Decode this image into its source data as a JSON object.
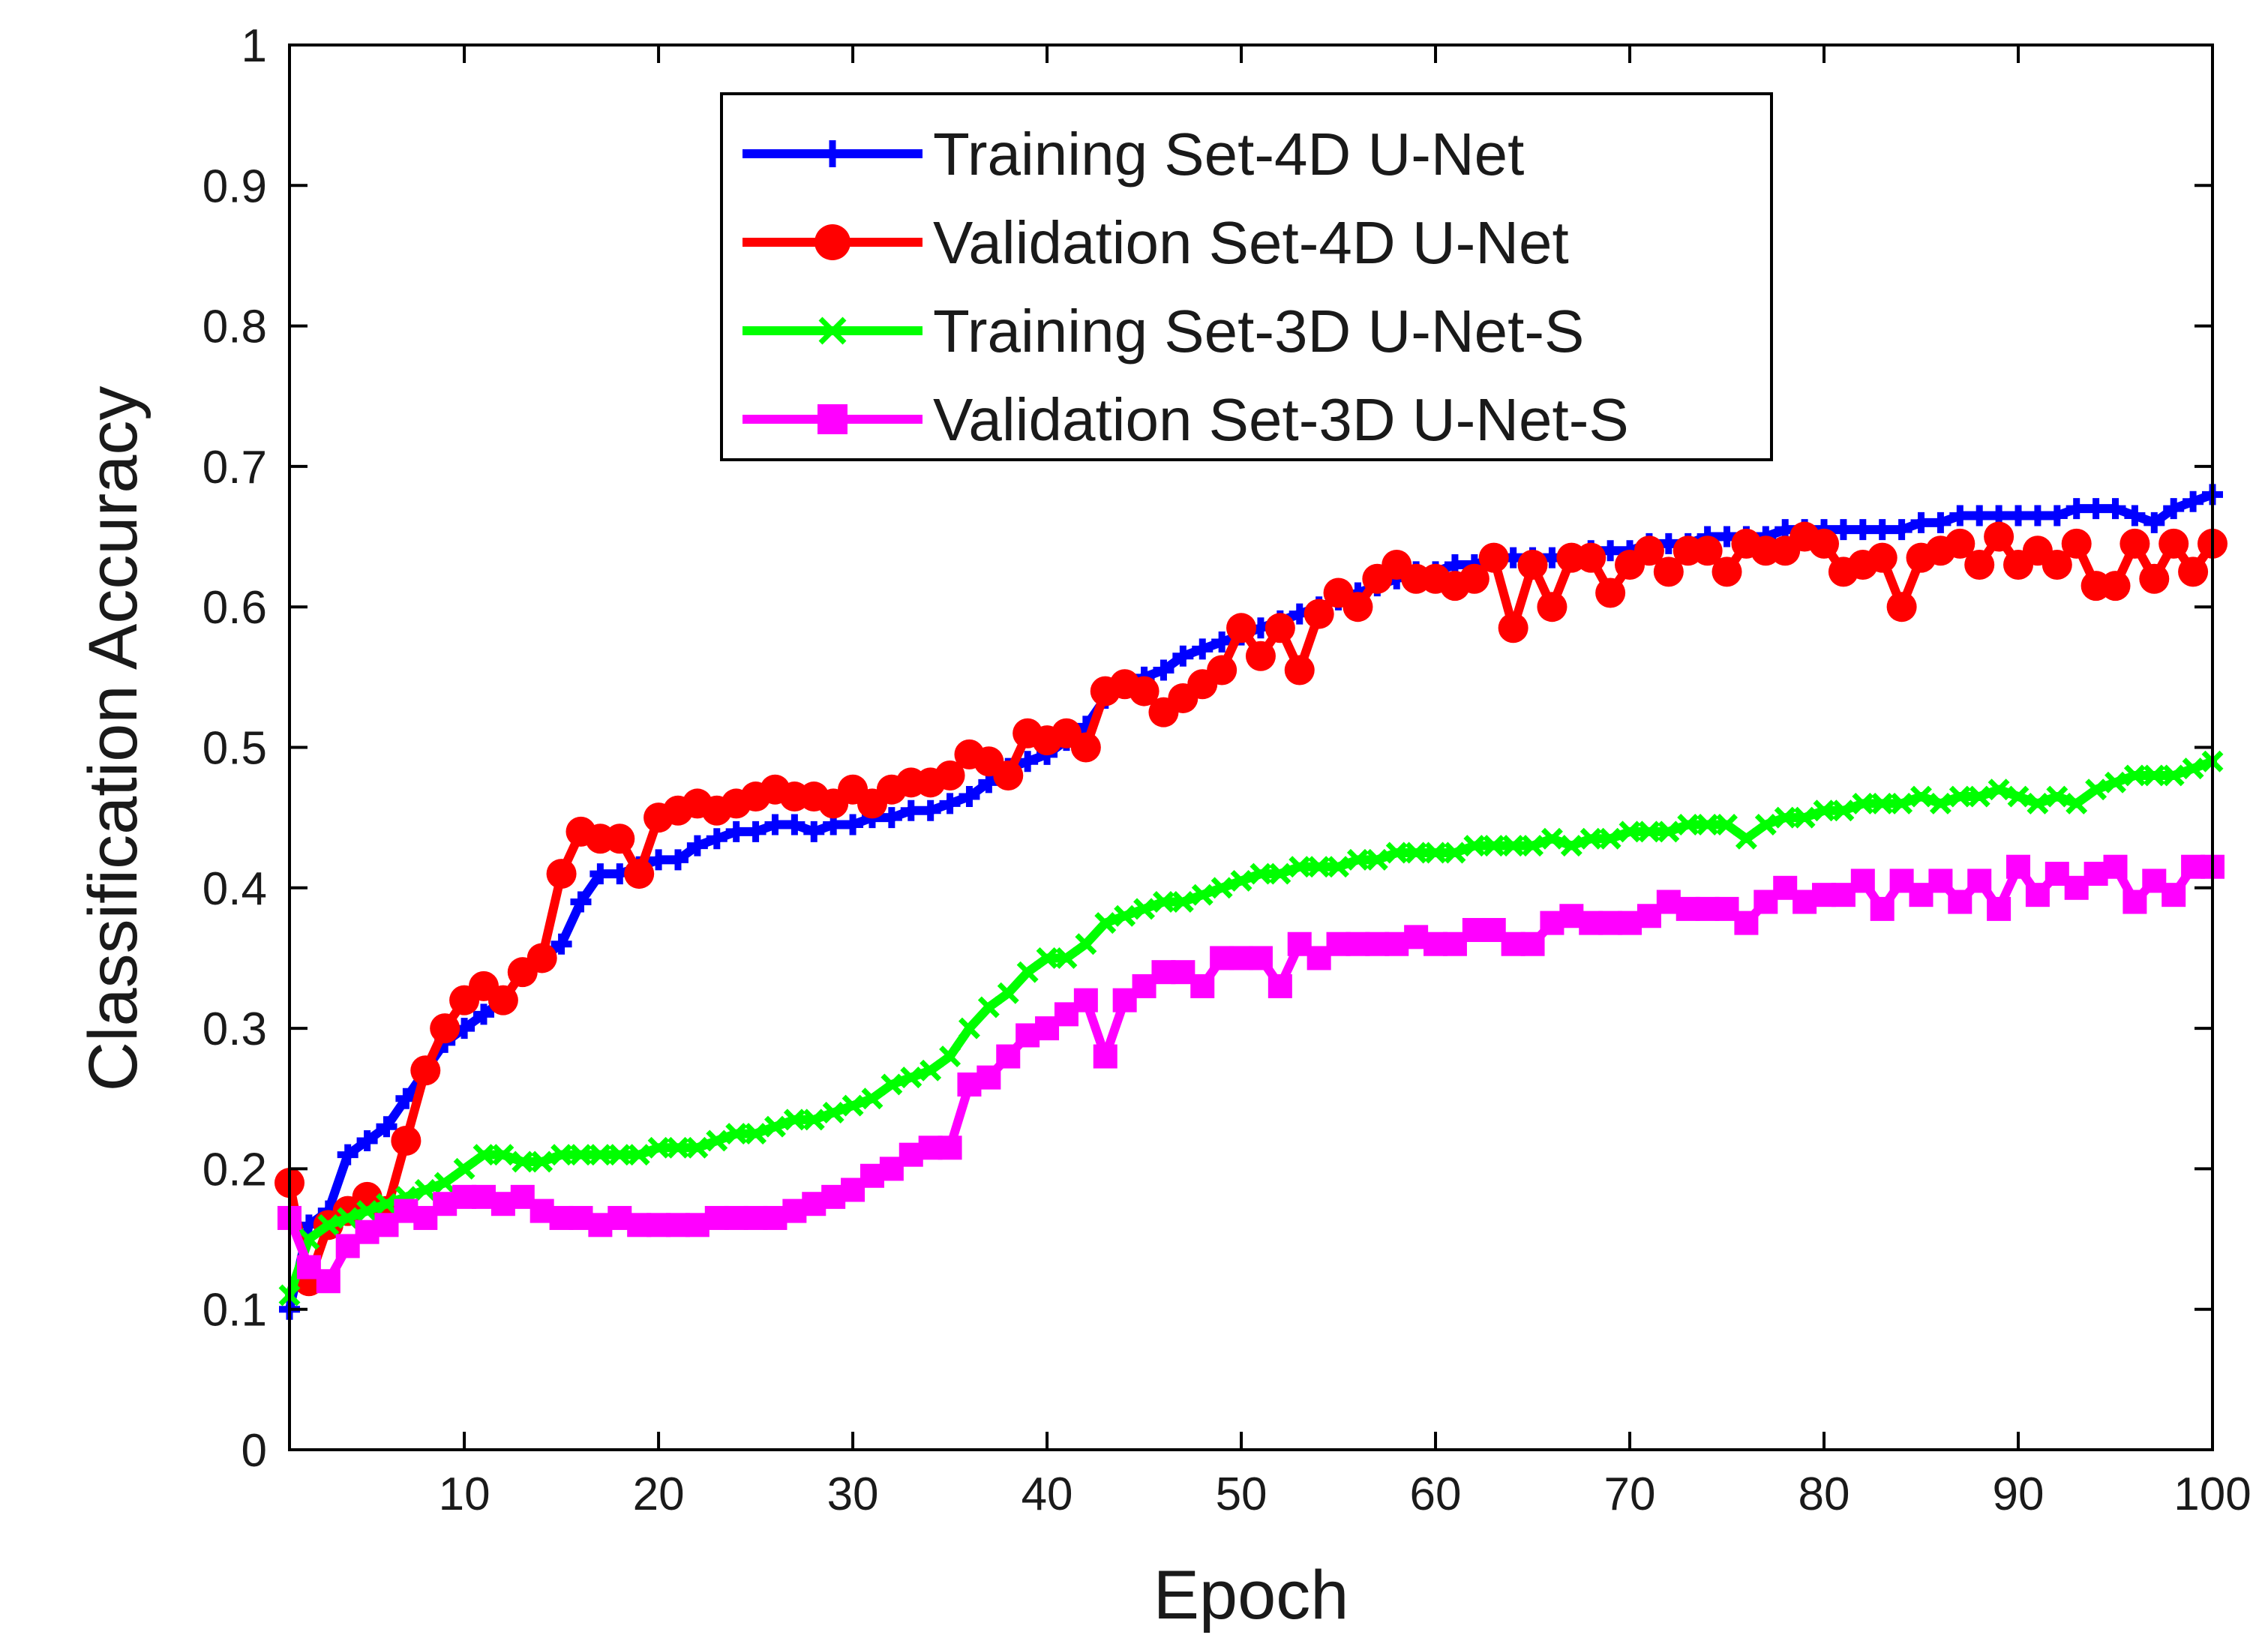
{
  "chart_data": {
    "type": "line",
    "title": "",
    "xlabel": "Epoch",
    "ylabel": "Classification Accuracy",
    "xlim": [
      1,
      100
    ],
    "ylim": [
      0,
      1
    ],
    "xticks": [
      10,
      20,
      30,
      40,
      50,
      60,
      70,
      80,
      90,
      100
    ],
    "yticks": [
      0,
      0.1,
      0.2,
      0.3,
      0.4,
      0.5,
      0.6,
      0.7,
      0.8,
      0.9,
      1
    ],
    "ytick_labels": [
      "0",
      "0.1",
      "0.2",
      "0.3",
      "0.4",
      "0.5",
      "0.6",
      "0.7",
      "0.8",
      "0.9",
      "1"
    ],
    "grid": false,
    "legend_position": "top-center",
    "series": [
      {
        "name": "Training Set-4D U-Net",
        "color": "#0000ff",
        "marker": "plus",
        "values": [
          0.1,
          0.16,
          0.17,
          0.21,
          0.22,
          0.23,
          0.25,
          0.27,
          0.29,
          0.3,
          0.31,
          0.32,
          0.34,
          0.35,
          0.36,
          0.39,
          0.41,
          0.41,
          0.415,
          0.42,
          0.42,
          0.43,
          0.435,
          0.44,
          0.44,
          0.445,
          0.445,
          0.44,
          0.445,
          0.445,
          0.45,
          0.45,
          0.455,
          0.455,
          0.46,
          0.465,
          0.475,
          0.485,
          0.49,
          0.495,
          0.505,
          0.515,
          0.535,
          0.545,
          0.55,
          0.555,
          0.565,
          0.57,
          0.575,
          0.58,
          0.585,
          0.59,
          0.595,
          0.6,
          0.605,
          0.61,
          0.615,
          0.62,
          0.625,
          0.625,
          0.63,
          0.63,
          0.635,
          0.635,
          0.635,
          0.635,
          0.635,
          0.64,
          0.64,
          0.64,
          0.645,
          0.645,
          0.645,
          0.65,
          0.65,
          0.65,
          0.65,
          0.655,
          0.655,
          0.655,
          0.655,
          0.655,
          0.655,
          0.655,
          0.66,
          0.66,
          0.665,
          0.665,
          0.665,
          0.665,
          0.665,
          0.665,
          0.67,
          0.67,
          0.67,
          0.665,
          0.66,
          0.67,
          0.675,
          0.68
        ]
      },
      {
        "name": "Validation Set-4D U-Net",
        "color": "#ff0000",
        "marker": "circle",
        "values": [
          0.19,
          0.12,
          0.16,
          0.17,
          0.18,
          0.17,
          0.22,
          0.27,
          0.3,
          0.32,
          0.33,
          0.32,
          0.34,
          0.35,
          0.41,
          0.44,
          0.435,
          0.435,
          0.41,
          0.45,
          0.455,
          0.46,
          0.455,
          0.46,
          0.465,
          0.47,
          0.465,
          0.465,
          0.46,
          0.47,
          0.46,
          0.47,
          0.475,
          0.475,
          0.48,
          0.495,
          0.49,
          0.48,
          0.51,
          0.505,
          0.51,
          0.5,
          0.54,
          0.545,
          0.54,
          0.525,
          0.535,
          0.545,
          0.555,
          0.585,
          0.565,
          0.585,
          0.555,
          0.595,
          0.61,
          0.6,
          0.62,
          0.63,
          0.62,
          0.62,
          0.615,
          0.62,
          0.635,
          0.585,
          0.63,
          0.6,
          0.635,
          0.635,
          0.61,
          0.63,
          0.64,
          0.625,
          0.64,
          0.64,
          0.625,
          0.645,
          0.64,
          0.64,
          0.65,
          0.645,
          0.625,
          0.63,
          0.635,
          0.6,
          0.635,
          0.64,
          0.645,
          0.63,
          0.65,
          0.63,
          0.64,
          0.63,
          0.645,
          0.615,
          0.615,
          0.645,
          0.62,
          0.645,
          0.625,
          0.645
        ]
      },
      {
        "name": "Training Set-3D U-Net-S",
        "color": "#00ff00",
        "marker": "x",
        "values": [
          0.11,
          0.15,
          0.16,
          0.165,
          0.17,
          0.175,
          0.18,
          0.185,
          0.19,
          0.2,
          0.21,
          0.21,
          0.205,
          0.205,
          0.21,
          0.21,
          0.21,
          0.21,
          0.21,
          0.215,
          0.215,
          0.215,
          0.22,
          0.225,
          0.225,
          0.23,
          0.235,
          0.235,
          0.24,
          0.245,
          0.25,
          0.26,
          0.265,
          0.27,
          0.28,
          0.3,
          0.315,
          0.325,
          0.34,
          0.35,
          0.35,
          0.36,
          0.375,
          0.38,
          0.385,
          0.39,
          0.39,
          0.395,
          0.4,
          0.405,
          0.41,
          0.41,
          0.415,
          0.415,
          0.415,
          0.42,
          0.42,
          0.425,
          0.425,
          0.425,
          0.425,
          0.43,
          0.43,
          0.43,
          0.43,
          0.435,
          0.43,
          0.435,
          0.435,
          0.44,
          0.44,
          0.44,
          0.445,
          0.445,
          0.445,
          0.435,
          0.445,
          0.45,
          0.45,
          0.455,
          0.455,
          0.46,
          0.46,
          0.46,
          0.465,
          0.46,
          0.465,
          0.465,
          0.47,
          0.465,
          0.46,
          0.465,
          0.46,
          0.47,
          0.475,
          0.48,
          0.48,
          0.48,
          0.485,
          0.49
        ]
      },
      {
        "name": "Validation Set-3D U-Net-S",
        "color": "#ff00ff",
        "marker": "square",
        "values": [
          0.165,
          0.13,
          0.12,
          0.145,
          0.155,
          0.16,
          0.17,
          0.165,
          0.175,
          0.18,
          0.18,
          0.175,
          0.18,
          0.17,
          0.165,
          0.165,
          0.16,
          0.165,
          0.16,
          0.16,
          0.16,
          0.16,
          0.165,
          0.165,
          0.165,
          0.165,
          0.17,
          0.175,
          0.18,
          0.185,
          0.195,
          0.2,
          0.21,
          0.215,
          0.215,
          0.26,
          0.265,
          0.28,
          0.295,
          0.3,
          0.31,
          0.32,
          0.28,
          0.32,
          0.33,
          0.34,
          0.34,
          0.33,
          0.35,
          0.35,
          0.35,
          0.33,
          0.36,
          0.35,
          0.36,
          0.36,
          0.36,
          0.36,
          0.365,
          0.36,
          0.36,
          0.37,
          0.37,
          0.36,
          0.36,
          0.375,
          0.38,
          0.375,
          0.375,
          0.375,
          0.38,
          0.39,
          0.385,
          0.385,
          0.385,
          0.375,
          0.39,
          0.4,
          0.39,
          0.395,
          0.395,
          0.405,
          0.385,
          0.405,
          0.395,
          0.405,
          0.39,
          0.405,
          0.385,
          0.415,
          0.395,
          0.41,
          0.4,
          0.41,
          0.415,
          0.39,
          0.405,
          0.395,
          0.415,
          0.415
        ]
      }
    ]
  }
}
